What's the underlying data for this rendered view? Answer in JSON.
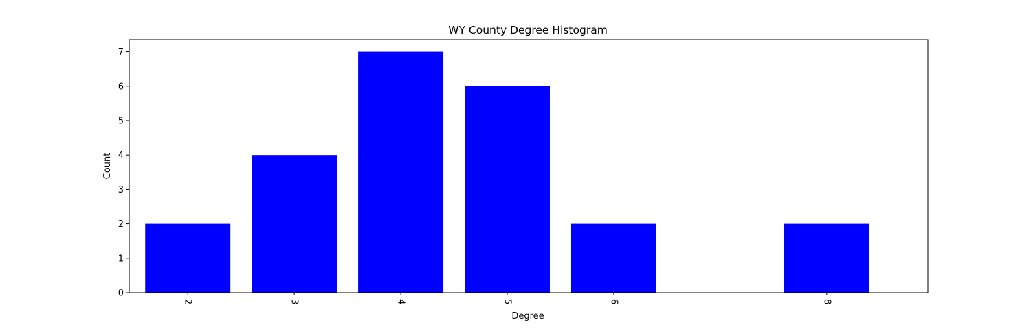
{
  "chart_data": {
    "type": "bar",
    "title": "WY County Degree Histogram",
    "xlabel": "Degree",
    "ylabel": "Count",
    "x": [
      2,
      3,
      4,
      5,
      6,
      8
    ],
    "values": [
      2,
      4,
      7,
      6,
      2,
      2
    ],
    "xlim": [
      1.45,
      8.95
    ],
    "ylim": [
      0,
      7.35
    ],
    "yticks": [
      0,
      1,
      2,
      3,
      4,
      5,
      6,
      7
    ],
    "xticks": [
      2,
      3,
      4,
      5,
      6,
      8
    ],
    "bar_width": 0.8,
    "x_tick_rotation_deg": -90,
    "bar_color": "#0000ff",
    "grid": false,
    "legend": "none"
  }
}
